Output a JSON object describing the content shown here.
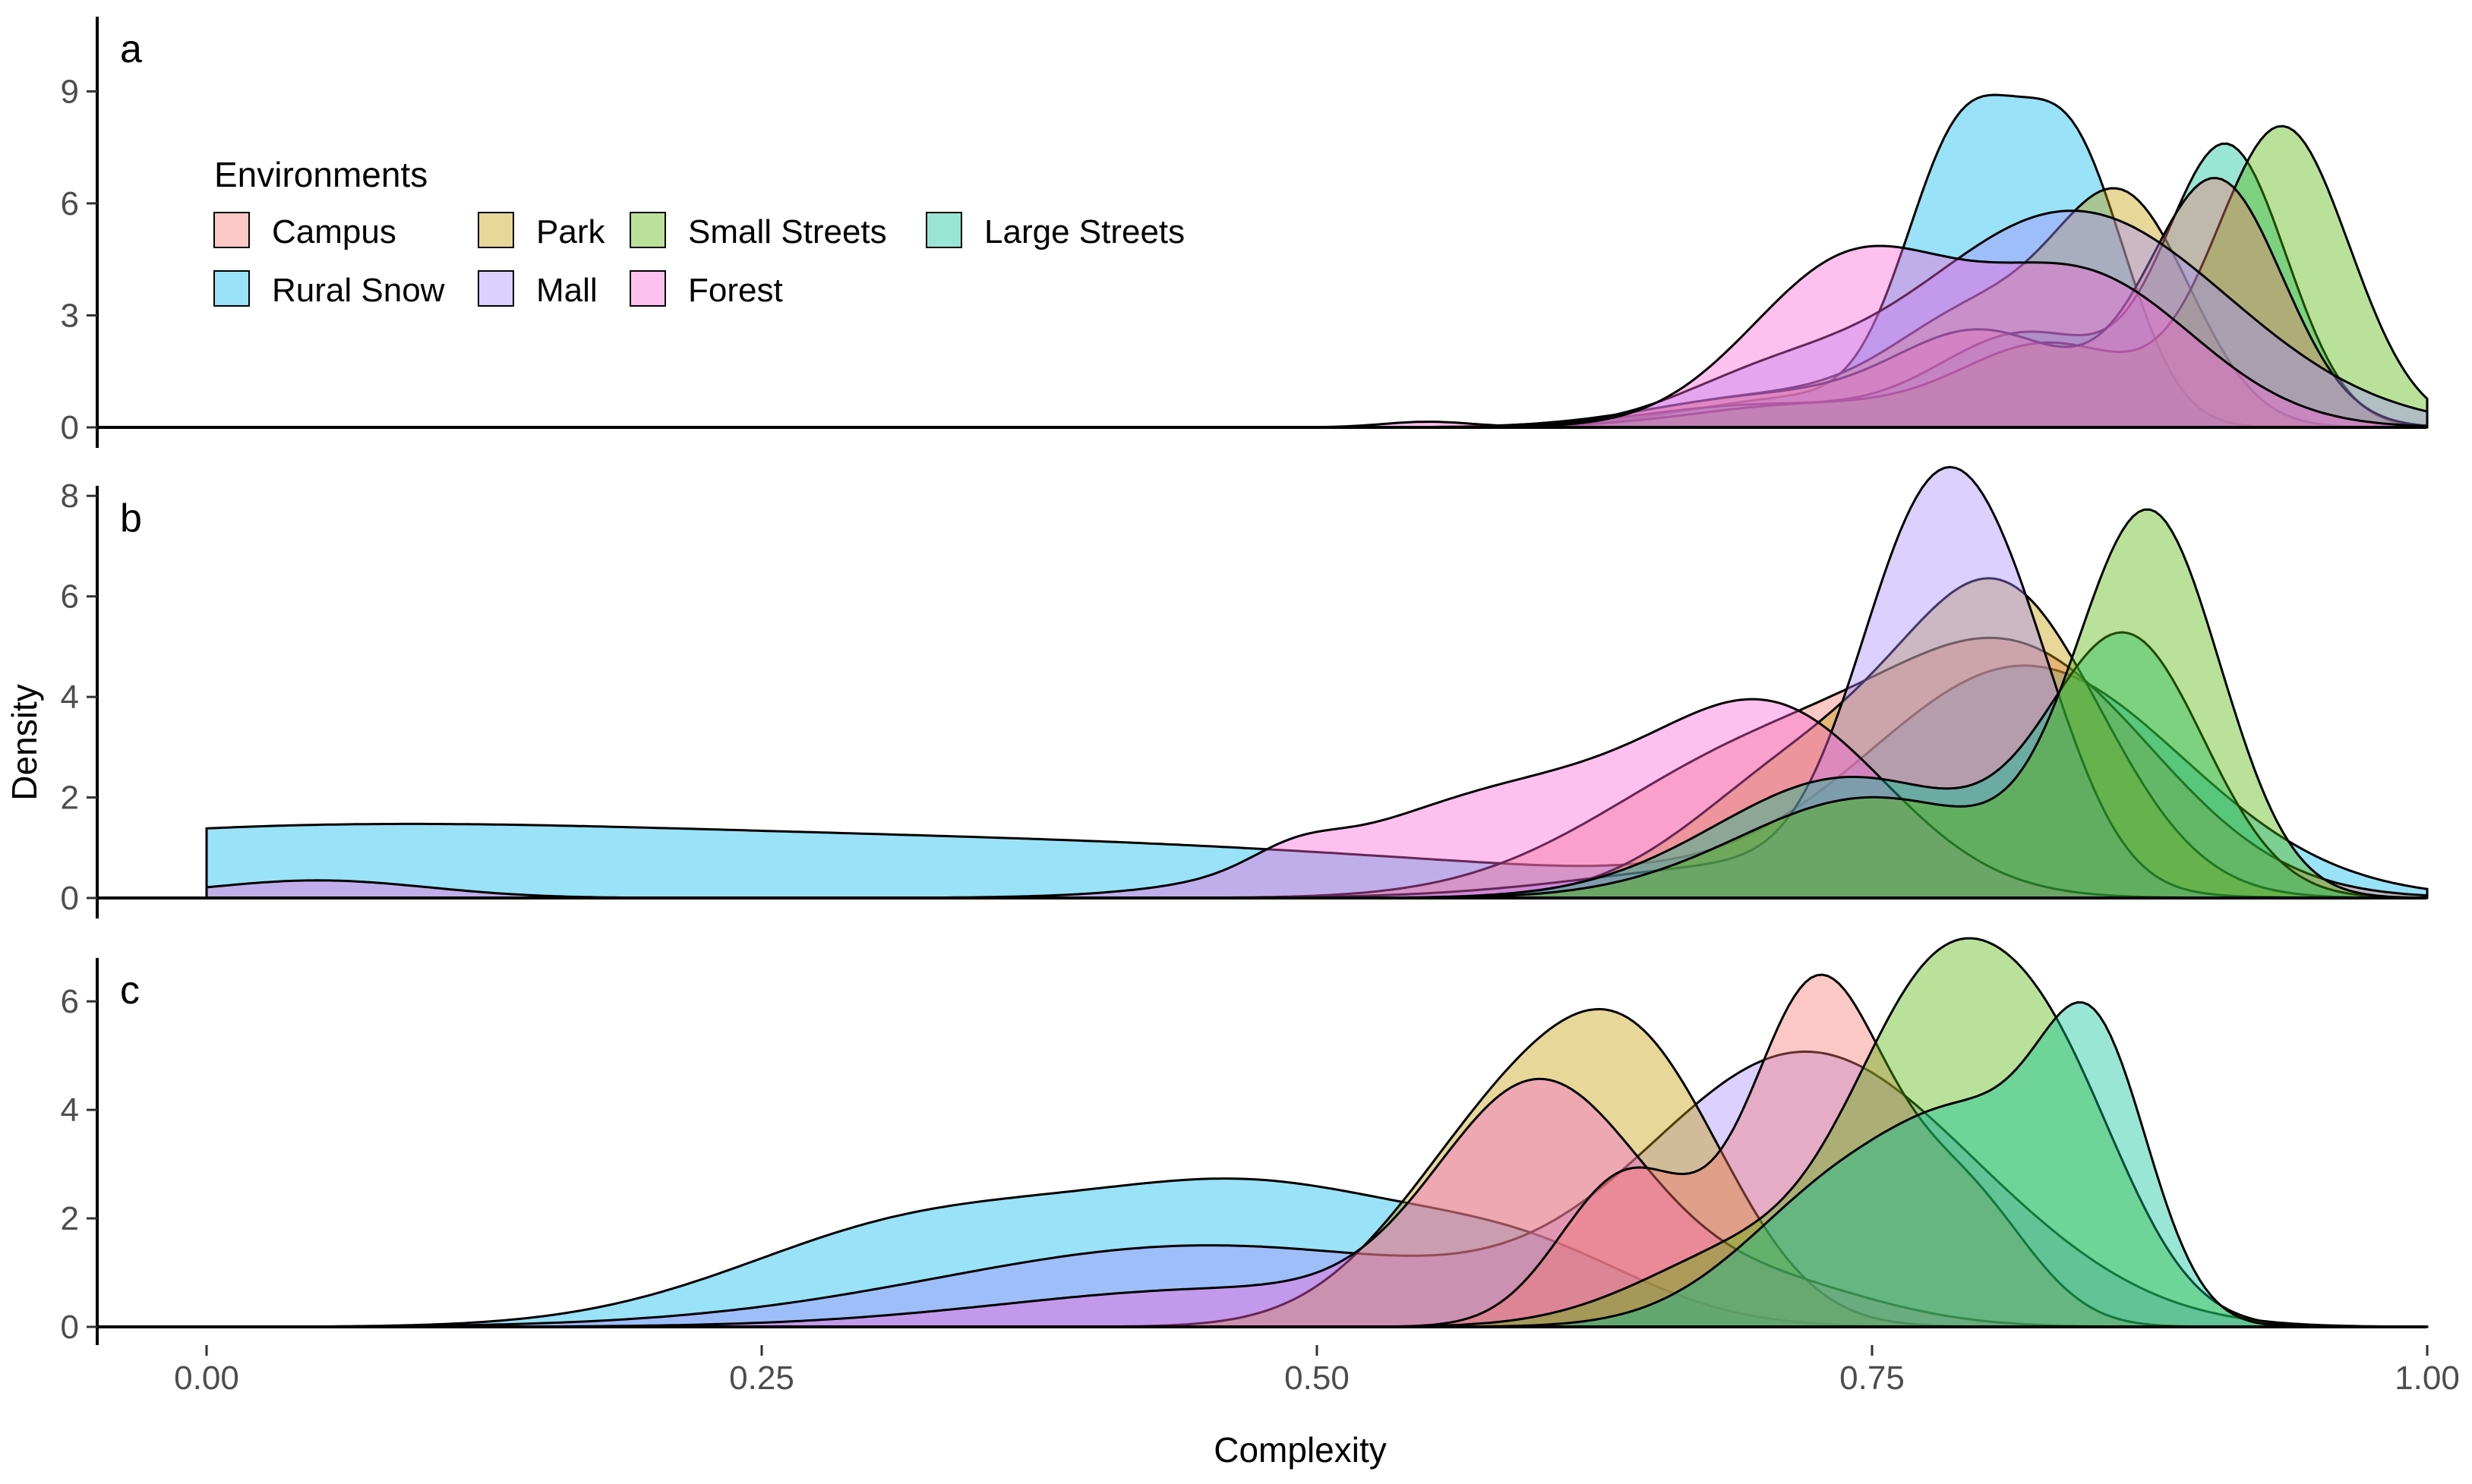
{
  "chart_data": {
    "type": "area",
    "title": "",
    "xlabel": "Complexity",
    "ylabel": "Density",
    "xlim": [
      0,
      1
    ],
    "x_ticks": [
      "0.00",
      "0.25",
      "0.50",
      "0.75",
      "1.00"
    ],
    "grid": false,
    "legend": {
      "title": "Environments",
      "placement": "top-left inside panel a",
      "entries": [
        "Campus",
        "Park",
        "Small Streets",
        "Large Streets",
        "Rural Snow",
        "Mall",
        "Forest"
      ]
    },
    "colors": {
      "Campus": "#F8766D",
      "Park": "#C49A00",
      "Small Streets": "#53B400",
      "Large Streets": "#00C094",
      "Rural Snow": "#00B6EB",
      "Mall": "#A58AFF",
      "Forest": "#FB61D7"
    },
    "panels": [
      {
        "label": "a",
        "ylim": [
          0,
          11
        ],
        "y_ticks": [
          "0",
          "3",
          "6",
          "9"
        ],
        "series": [
          {
            "name": "Rural Snow",
            "peaks": [
              [
                0.72,
                0.8,
                0.05
              ],
              [
                0.79,
                7.2,
                0.025
              ],
              [
                0.84,
                7.2,
                0.025
              ]
            ]
          },
          {
            "name": "Park",
            "peaks": [
              [
                0.7,
                0.8,
                0.05
              ],
              [
                0.8,
                3.0,
                0.04
              ],
              [
                0.865,
                5.5,
                0.03
              ]
            ]
          },
          {
            "name": "Large Streets",
            "peaks": [
              [
                0.7,
                0.6,
                0.05
              ],
              [
                0.82,
                2.5,
                0.04
              ],
              [
                0.91,
                7.4,
                0.027
              ]
            ]
          },
          {
            "name": "Small Streets",
            "peaks": [
              [
                0.72,
                0.6,
                0.05
              ],
              [
                0.83,
                2.2,
                0.04
              ],
              [
                0.935,
                8.0,
                0.03
              ]
            ]
          },
          {
            "name": "Campus",
            "peaks": [
              [
                0.7,
                0.8,
                0.05
              ],
              [
                0.8,
                2.5,
                0.04
              ],
              [
                0.905,
                6.6,
                0.03
              ]
            ]
          },
          {
            "name": "Mall",
            "peaks": [
              [
                0.7,
                1.0,
                0.04
              ],
              [
                0.84,
                5.8,
                0.07
              ]
            ]
          },
          {
            "name": "Forest",
            "peaks": [
              [
                0.55,
                0.15,
                0.02
              ],
              [
                0.74,
                4.3,
                0.045
              ],
              [
                0.845,
                4.0,
                0.05
              ]
            ]
          }
        ]
      },
      {
        "label": "b",
        "ylim": [
          0,
          8.2
        ],
        "y_ticks": [
          "0",
          "2",
          "4",
          "6",
          "8"
        ],
        "series": [
          {
            "name": "Rural Snow",
            "peaks": [
              [
                0.03,
                1.3,
                0.2
              ],
              [
                0.42,
                0.9,
                0.2
              ],
              [
                0.82,
                4.5,
                0.07
              ]
            ]
          },
          {
            "name": "Campus",
            "peaks": [
              [
                0.7,
                2.8,
                0.07
              ],
              [
                0.82,
                4.4,
                0.06
              ]
            ]
          },
          {
            "name": "Park",
            "peaks": [
              [
                0.72,
                2.5,
                0.05
              ],
              [
                0.81,
                5.8,
                0.045
              ]
            ]
          },
          {
            "name": "Mall",
            "peaks": [
              [
                0.71,
                0.7,
                0.08
              ],
              [
                0.77,
                5.6,
                0.03
              ],
              [
                0.81,
                4.5,
                0.03
              ]
            ]
          },
          {
            "name": "Forest",
            "peaks": [
              [
                0.05,
                0.35,
                0.05
              ],
              [
                0.49,
                0.35,
                0.02
              ],
              [
                0.6,
                2.2,
                0.08
              ],
              [
                0.71,
                3.0,
                0.05
              ]
            ]
          },
          {
            "name": "Large Streets",
            "peaks": [
              [
                0.74,
                2.4,
                0.06
              ],
              [
                0.865,
                5.0,
                0.035
              ]
            ]
          },
          {
            "name": "Small Streets",
            "peaks": [
              [
                0.75,
                2.0,
                0.06
              ],
              [
                0.875,
                7.5,
                0.032
              ]
            ]
          }
        ]
      },
      {
        "label": "c",
        "ylim": [
          0,
          6.8
        ],
        "y_ticks": [
          "0",
          "2",
          "4",
          "6"
        ],
        "series": [
          {
            "name": "Rural Snow",
            "peaks": [
              [
                0.32,
                1.8,
                0.08
              ],
              [
                0.48,
                2.4,
                0.08
              ],
              [
                0.6,
                0.9,
                0.05
              ]
            ]
          },
          {
            "name": "Mall",
            "peaks": [
              [
                0.45,
                1.5,
                0.12
              ],
              [
                0.72,
                4.9,
                0.07
              ],
              [
                0.82,
                0.4,
                0.05
              ]
            ]
          },
          {
            "name": "Park",
            "peaks": [
              [
                0.59,
                3.8,
                0.05
              ],
              [
                0.65,
                3.5,
                0.04
              ]
            ]
          },
          {
            "name": "Forest",
            "peaks": [
              [
                0.46,
                0.7,
                0.1
              ],
              [
                0.6,
                4.2,
                0.045
              ],
              [
                0.7,
                0.8,
                0.05
              ]
            ]
          },
          {
            "name": "Campus",
            "peaks": [
              [
                0.64,
                2.8,
                0.03
              ],
              [
                0.725,
                6.2,
                0.03
              ],
              [
                0.79,
                2.4,
                0.03
              ]
            ]
          },
          {
            "name": "Small Streets",
            "peaks": [
              [
                0.7,
                1.5,
                0.05
              ],
              [
                0.775,
                5.0,
                0.035
              ],
              [
                0.83,
                4.4,
                0.035
              ]
            ]
          },
          {
            "name": "Large Streets",
            "peaks": [
              [
                0.75,
                3.0,
                0.05
              ],
              [
                0.8,
                1.8,
                0.03
              ],
              [
                0.85,
                5.0,
                0.025
              ]
            ]
          }
        ]
      }
    ]
  }
}
